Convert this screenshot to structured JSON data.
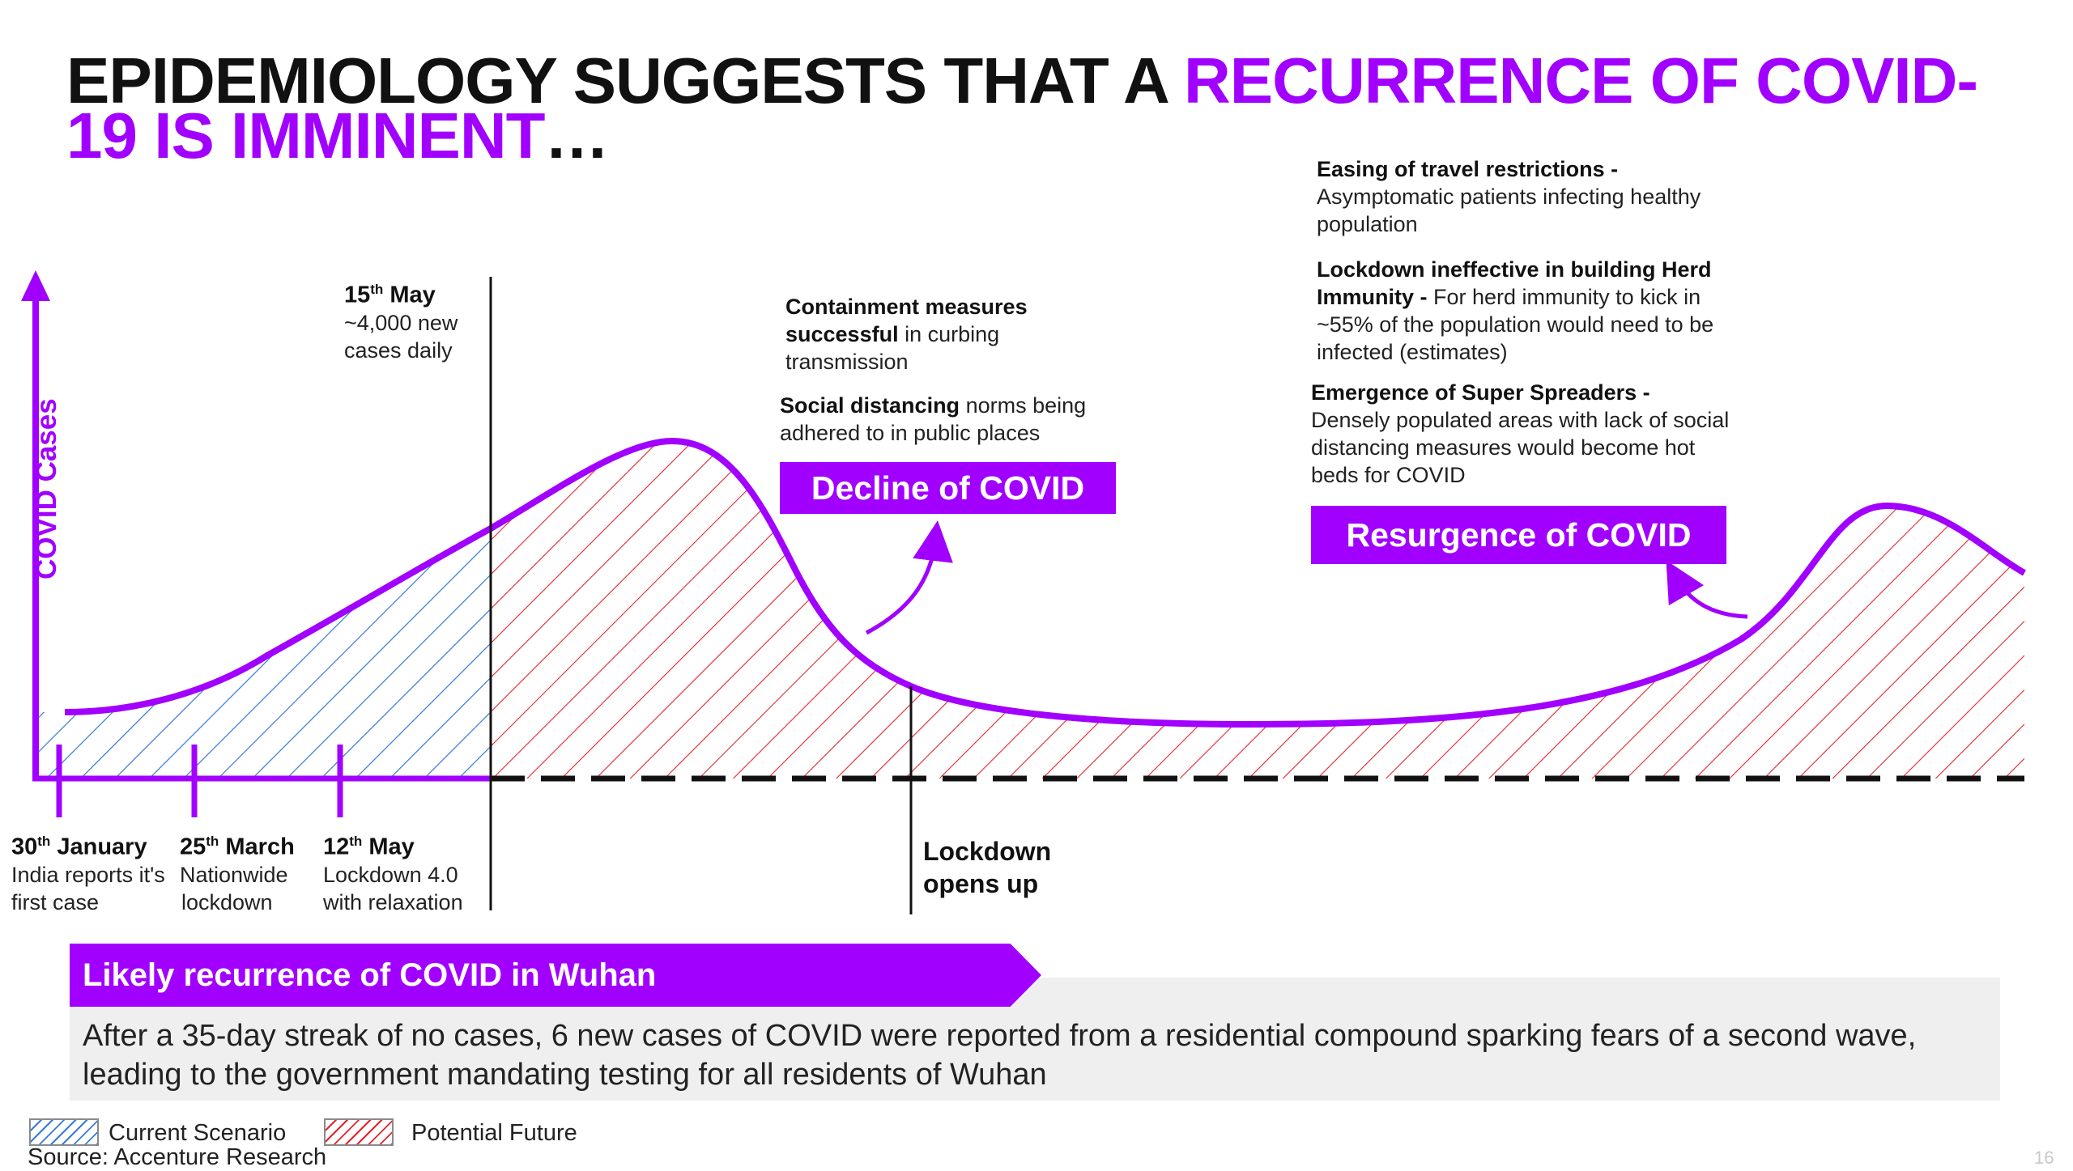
{
  "title": {
    "part1": "EPIDEMIOLOGY SUGGESTS THAT A ",
    "part2": "RECURRENCE OF COVID-",
    "part3": "19 IS IMMINENT",
    "part4": "…"
  },
  "y_axis_label": "COVID Cases",
  "top_events": [
    {
      "date_day": "15",
      "date_sup": "th",
      "date_month": " May",
      "line1": "~4,000 new",
      "line2": "cases daily"
    }
  ],
  "bottom_events": [
    {
      "date_day": "30",
      "date_sup": "th",
      "date_month": " January",
      "line1": "India reports it's",
      "line2": "first case"
    },
    {
      "date_day": "25",
      "date_sup": "th",
      "date_month": " March",
      "line1": "Nationwide",
      "line2": "lockdown"
    },
    {
      "date_day": "12",
      "date_sup": "th",
      "date_month": " May",
      "line1": "Lockdown 4.0",
      "line2": "with relaxation"
    }
  ],
  "lockdown_opens": {
    "line1": "Lockdown",
    "line2": "opens up"
  },
  "decline_notes": [
    {
      "bold": "Containment measures successful",
      "text": " in curbing transmission"
    },
    {
      "bold": "Social distancing",
      "text": " norms being adhered to in public places"
    }
  ],
  "decline_box": "Decline of COVID",
  "resurgence_notes": [
    {
      "bold": "Easing of travel restrictions -",
      "text": " Asymptomatic patients infecting healthy population"
    },
    {
      "bold": "Lockdown ineffective in building Herd Immunity -",
      "text": " For herd immunity to kick in ~55% of the population would need to be infected (estimates)"
    },
    {
      "bold": "Emergence of Super Spreaders -",
      "text": " Densely populated areas with lack of social distancing measures would become hot beds for COVID"
    }
  ],
  "resurgence_box": "Resurgence of COVID",
  "banner": "Likely recurrence of COVID in Wuhan",
  "body_text": "After a 35-day streak of no cases, 6 new cases of COVID were reported from a residential compound sparking fears of a second wave, leading to the government mandating testing for all residents of Wuhan",
  "legend": [
    {
      "label": "Current Scenario",
      "color": "#3a7bd5"
    },
    {
      "label": "Potential Future",
      "color": "#e3242b"
    }
  ],
  "source": "Source: Accenture Research",
  "page_number": "16",
  "colors": {
    "accent": "#a100ff",
    "current": "#3a7bd5",
    "future": "#e3242b"
  }
}
